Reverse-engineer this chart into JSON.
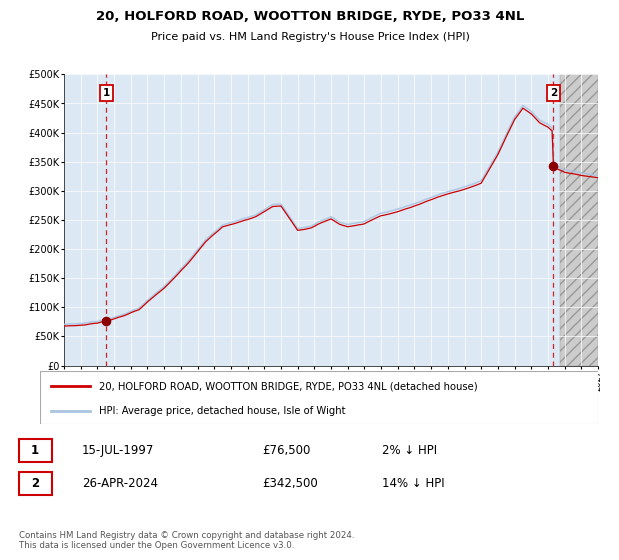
{
  "title": "20, HOLFORD ROAD, WOOTTON BRIDGE, RYDE, PO33 4NL",
  "subtitle": "Price paid vs. HM Land Registry's House Price Index (HPI)",
  "legend_line1": "20, HOLFORD ROAD, WOOTTON BRIDGE, RYDE, PO33 4NL (detached house)",
  "legend_line2": "HPI: Average price, detached house, Isle of Wight",
  "annotation1_date": "15-JUL-1997",
  "annotation1_price": "£76,500",
  "annotation1_hpi": "2% ↓ HPI",
  "annotation2_date": "26-APR-2024",
  "annotation2_price": "£342,500",
  "annotation2_hpi": "14% ↓ HPI",
  "footer": "Contains HM Land Registry data © Crown copyright and database right 2024.\nThis data is licensed under the Open Government Licence v3.0.",
  "hpi_color": "#aac4e0",
  "price_color": "#cc0000",
  "marker_color": "#8b0000",
  "bg_color": "#dce9f5",
  "grid_color": "#ffffff",
  "sale1_year": 1997.54,
  "sale1_value": 76500,
  "sale2_year": 2024.32,
  "sale2_value": 342500,
  "xmin": 1995.0,
  "xmax": 2027.0,
  "ymin": 0,
  "ymax": 500000,
  "future_start": 2024.75
}
